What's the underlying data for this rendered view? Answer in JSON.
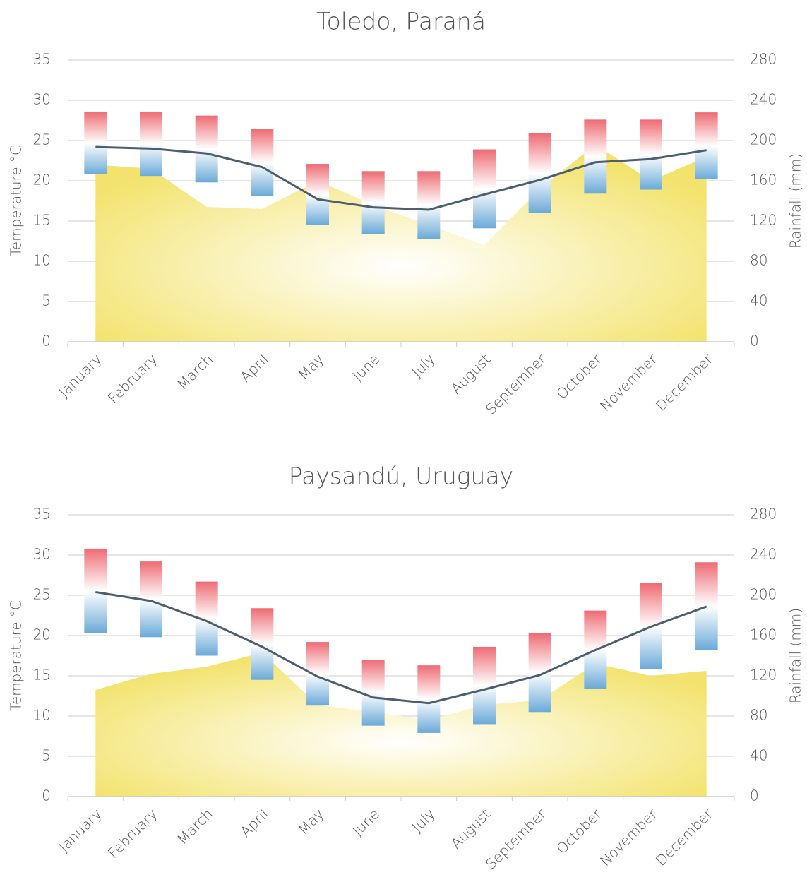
{
  "chart_data": [
    {
      "type": "climate",
      "title": "Toledo, Paraná",
      "categories": [
        "January",
        "February",
        "March",
        "April",
        "May",
        "June",
        "July",
        "August",
        "September",
        "October",
        "November",
        "December"
      ],
      "temperature_max": [
        28.6,
        28.6,
        28.1,
        26.4,
        22.1,
        21.2,
        21.2,
        23.9,
        25.9,
        27.6,
        27.6,
        28.5
      ],
      "temperature_min": [
        20.8,
        20.6,
        19.8,
        18.1,
        14.5,
        13.4,
        12.8,
        14.1,
        16.0,
        18.4,
        18.9,
        20.2
      ],
      "temperature_mean": [
        24.2,
        24.0,
        23.4,
        21.7,
        17.7,
        16.7,
        16.4,
        18.3,
        20.1,
        22.3,
        22.7,
        23.8
      ],
      "rainfall": [
        176,
        172,
        134,
        132,
        160,
        136,
        116,
        96,
        152,
        196,
        160,
        184
      ],
      "bar_top_color": "#ee6b73",
      "bar_bottom_color": "#6aaad8",
      "line_color": "#4d5e6e",
      "area_color": "#f3e36e",
      "y_label": "Temperature °C",
      "y2_label": "Rainfall (mm)",
      "ylim": [
        0,
        35
      ],
      "yticks": [
        0,
        5,
        10,
        15,
        20,
        25,
        30,
        35
      ],
      "y2lim": [
        0,
        280
      ],
      "y2ticks": [
        0,
        40,
        80,
        120,
        160,
        200,
        240,
        280
      ],
      "grid": true
    },
    {
      "type": "climate",
      "title": "Paysandú, Uruguay",
      "categories": [
        "January",
        "February",
        "March",
        "April",
        "May",
        "June",
        "July",
        "August",
        "September",
        "October",
        "November",
        "December"
      ],
      "temperature_max": [
        30.8,
        29.2,
        26.7,
        23.4,
        19.2,
        17.0,
        16.3,
        18.6,
        20.3,
        23.1,
        26.5,
        29.1
      ],
      "temperature_min": [
        20.3,
        19.8,
        17.5,
        14.5,
        11.3,
        8.8,
        7.9,
        9.0,
        10.5,
        13.4,
        15.8,
        18.2
      ],
      "temperature_mean": [
        25.4,
        24.3,
        21.8,
        18.6,
        14.9,
        12.3,
        11.6,
        13.3,
        15.1,
        18.2,
        21.1,
        23.6
      ],
      "rainfall": [
        106,
        122,
        129,
        143,
        91,
        84,
        76,
        91,
        96,
        132,
        120,
        125
      ],
      "bar_top_color": "#ee6b73",
      "bar_bottom_color": "#6aaad8",
      "line_color": "#4d5e6e",
      "area_color": "#f3e36e",
      "y_label": "Temperature °C",
      "y2_label": "Rainfall (mm)",
      "ylim": [
        0,
        35
      ],
      "yticks": [
        0,
        5,
        10,
        15,
        20,
        25,
        30,
        35
      ],
      "y2lim": [
        0,
        280
      ],
      "y2ticks": [
        0,
        40,
        80,
        120,
        160,
        200,
        240,
        280
      ],
      "grid": true
    }
  ]
}
